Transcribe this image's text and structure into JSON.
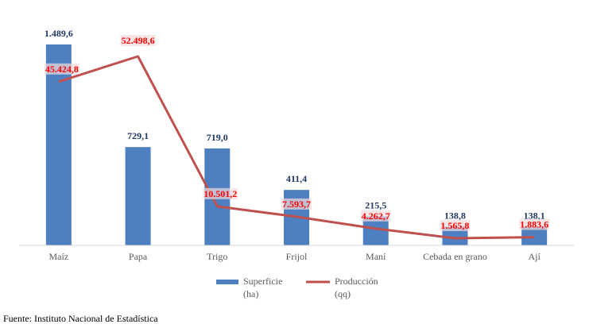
{
  "chart_data": {
    "type": "bar",
    "categories": [
      "Maíz",
      "Papa",
      "Trigo",
      "Frijol",
      "Maní",
      "Cebada en grano",
      "Ají"
    ],
    "series": [
      {
        "name": "Superficie (ha)",
        "kind": "bar",
        "color": "#4e7fc1",
        "values": [
          1489.6,
          729.1,
          719.0,
          411.4,
          215.5,
          138.8,
          138.1
        ],
        "labels": [
          "1.489,6",
          "729,1",
          "719,0",
          "411,4",
          "215,5",
          "138,8",
          "138,1"
        ],
        "label_color": "#1f3864"
      },
      {
        "name": "Producción (qq)",
        "kind": "line",
        "color": "#c0504d",
        "values": [
          45424.8,
          52498.6,
          10501.2,
          7593.7,
          4262.7,
          1565.8,
          1883.6
        ],
        "labels": [
          "45.424,8",
          "52.498,6",
          "10.501,2",
          "7.593,7",
          "4.262,7",
          "1.565,8",
          "1.883,6"
        ],
        "label_color": "#ff0000"
      }
    ],
    "legend": {
      "position": "bottom",
      "items": [
        {
          "label_line1": "Superficie",
          "label_line2": "(ha)"
        },
        {
          "label_line1": "Producción",
          "label_line2": "(qq)"
        }
      ]
    },
    "title": "",
    "xlabel": "",
    "ylabel": "",
    "grid": false
  },
  "source": "Fuente: Instituto Nacional de Estadística"
}
